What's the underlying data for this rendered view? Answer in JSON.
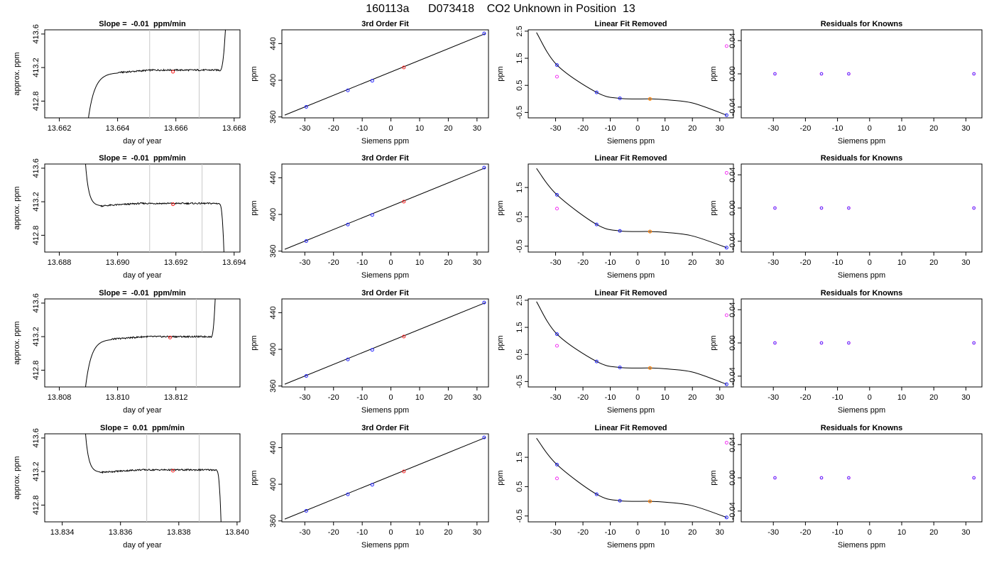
{
  "title": "160113a      D073418    CO2 Unknown in Position  13",
  "colors": {
    "curve": "#000000",
    "gray_line": "#c8c8c8",
    "known_point": "#2020ff",
    "unknown_point": "#ff2020",
    "unknown_fit_point": "#ff7f00",
    "residual_magenta": "#ee00ee",
    "residual_blue": "#4040ff"
  },
  "chart_data": [
    {
      "type": "line",
      "row": 0,
      "title": "Slope =  -0.01  ppm/min",
      "xlabel": "day of year",
      "ylabel": "approx. ppm",
      "xlim": [
        13.6615,
        13.6682
      ],
      "ylim": [
        412.6,
        413.65
      ],
      "xticks": [
        13.662,
        13.664,
        13.666,
        13.668
      ],
      "xtick_labels": [
        "13.662",
        "13.664",
        "13.666",
        "13.668"
      ],
      "yticks": [
        412.8,
        413.2,
        413.6
      ],
      "ytick_labels": [
        "412.8",
        "413.2",
        "413.6"
      ],
      "vlines": [
        13.6651,
        13.6668
      ],
      "baseline": 413.16,
      "point": [
        13.6659,
        413.15
      ],
      "rise_start": 13.663,
      "plateau_start": 13.664,
      "tail_start": 13.6675,
      "tail_end": 13.6677,
      "start_value": 412.6,
      "end_value": 413.65
    },
    {
      "type": "line",
      "row": 1,
      "title": "Slope =  -0.01  ppm/min",
      "xlabel": "day of year",
      "ylabel": "approx. ppm",
      "xlim": [
        13.6875,
        13.6942
      ],
      "ylim": [
        412.6,
        413.65
      ],
      "xticks": [
        13.688,
        13.69,
        13.692,
        13.694
      ],
      "xtick_labels": [
        "13.688",
        "13.690",
        "13.692",
        "13.694"
      ],
      "yticks": [
        412.8,
        413.2,
        413.6
      ],
      "ytick_labels": [
        "412.8",
        "413.2",
        "413.6"
      ],
      "vlines": [
        13.6911,
        13.6929
      ],
      "baseline": 413.17,
      "point": [
        13.6919,
        413.17
      ],
      "rise_start": 13.6889,
      "plateau_start": 13.6894,
      "tail_start": 13.6935,
      "tail_end": 13.69365,
      "start_value": 413.65,
      "end_value": 412.6
    },
    {
      "type": "line",
      "row": 2,
      "title": "Slope =  -0.01  ppm/min",
      "xlabel": "day of year",
      "ylabel": "approx. ppm",
      "xlim": [
        13.8075,
        13.8142
      ],
      "ylim": [
        412.6,
        413.65
      ],
      "xticks": [
        13.808,
        13.81,
        13.812
      ],
      "xtick_labels": [
        "13.808",
        "13.810",
        "13.812"
      ],
      "yticks": [
        412.8,
        413.2,
        413.6
      ],
      "ytick_labels": [
        "412.8",
        "413.2",
        "413.6"
      ],
      "vlines": [
        13.811,
        13.8127
      ],
      "baseline": 413.19,
      "point": [
        13.8118,
        413.19
      ],
      "rise_start": 13.8089,
      "plateau_start": 13.8098,
      "tail_start": 13.8132,
      "tail_end": 13.81335,
      "start_value": 412.6,
      "end_value": 413.65
    },
    {
      "type": "line",
      "row": 3,
      "title": "Slope =  0.01  ppm/min",
      "xlabel": "day of year",
      "ylabel": "approx. ppm",
      "xlim": [
        13.8334,
        13.8401
      ],
      "ylim": [
        412.6,
        413.65
      ],
      "xticks": [
        13.834,
        13.836,
        13.838,
        13.84
      ],
      "xtick_labels": [
        "13.834",
        "13.836",
        "13.838",
        "13.840"
      ],
      "yticks": [
        412.8,
        413.2,
        413.6
      ],
      "ytick_labels": [
        "412.8",
        "413.2",
        "413.6"
      ],
      "vlines": [
        13.8369,
        13.8387
      ],
      "baseline": 413.21,
      "point": [
        13.8378,
        413.21
      ],
      "rise_start": 13.8348,
      "plateau_start": 13.8353,
      "tail_start": 13.8393,
      "tail_end": 13.83945,
      "start_value": 413.65,
      "end_value": 412.6
    },
    {
      "type": "scatter",
      "row": 0,
      "title": "3rd Order Fit",
      "xlabel": "Siemens ppm",
      "ylabel": "ppm",
      "xlim": [
        -38,
        34
      ],
      "ylim": [
        359,
        455
      ],
      "xticks": [
        -30,
        -20,
        -10,
        0,
        10,
        20,
        30
      ],
      "xtick_labels": [
        "-30",
        "-20",
        "-10",
        "0",
        "10",
        "20",
        "30"
      ],
      "yticks": [
        360,
        400,
        440
      ],
      "ytick_labels": [
        "360",
        "400",
        "440"
      ],
      "line": [
        [
          -37,
          362
        ],
        [
          33,
          451
        ]
      ],
      "knowns": [
        [
          -29.5,
          371
        ],
        [
          -15,
          389
        ],
        [
          -6.5,
          399.5
        ],
        [
          32.5,
          451
        ]
      ],
      "unknown": [
        [
          4.5,
          414
        ]
      ]
    },
    {
      "type": "scatter",
      "row": 1,
      "title": "3rd Order Fit",
      "xlabel": "Siemens ppm",
      "ylabel": "ppm",
      "xlim": [
        -38,
        34
      ],
      "ylim": [
        359,
        455
      ],
      "xticks": [
        -30,
        -20,
        -10,
        0,
        10,
        20,
        30
      ],
      "xtick_labels": [
        "-30",
        "-20",
        "-10",
        "0",
        "10",
        "20",
        "30"
      ],
      "yticks": [
        360,
        400,
        440
      ],
      "ytick_labels": [
        "360",
        "400",
        "440"
      ],
      "line": [
        [
          -37,
          362
        ],
        [
          33,
          451
        ]
      ],
      "knowns": [
        [
          -29.5,
          371
        ],
        [
          -15,
          389
        ],
        [
          -6.5,
          399.5
        ],
        [
          32.5,
          451
        ]
      ],
      "unknown": [
        [
          4.5,
          414
        ]
      ]
    },
    {
      "type": "scatter",
      "row": 2,
      "title": "3rd Order Fit",
      "xlabel": "Siemens ppm",
      "ylabel": "ppm",
      "xlim": [
        -38,
        34
      ],
      "ylim": [
        359,
        455
      ],
      "xticks": [
        -30,
        -20,
        -10,
        0,
        10,
        20,
        30
      ],
      "xtick_labels": [
        "-30",
        "-20",
        "-10",
        "0",
        "10",
        "20",
        "30"
      ],
      "yticks": [
        360,
        400,
        440
      ],
      "ytick_labels": [
        "360",
        "400",
        "440"
      ],
      "line": [
        [
          -37,
          362
        ],
        [
          33,
          451
        ]
      ],
      "knowns": [
        [
          -29.5,
          371
        ],
        [
          -15,
          389
        ],
        [
          -6.5,
          399.5
        ],
        [
          32.5,
          451
        ]
      ],
      "unknown": [
        [
          4.5,
          414
        ]
      ]
    },
    {
      "type": "scatter",
      "row": 3,
      "title": "3rd Order Fit",
      "xlabel": "Siemens ppm",
      "ylabel": "ppm",
      "xlim": [
        -38,
        34
      ],
      "ylim": [
        359,
        455
      ],
      "xticks": [
        -30,
        -20,
        -10,
        0,
        10,
        20,
        30
      ],
      "xtick_labels": [
        "-30",
        "-20",
        "-10",
        "0",
        "10",
        "20",
        "30"
      ],
      "yticks": [
        360,
        400,
        440
      ],
      "ytick_labels": [
        "360",
        "400",
        "440"
      ],
      "line": [
        [
          -37,
          362
        ],
        [
          33,
          451
        ]
      ],
      "knowns": [
        [
          -29.5,
          371
        ],
        [
          -15,
          389
        ],
        [
          -6.5,
          399.5
        ],
        [
          32.5,
          451
        ]
      ],
      "unknown": [
        [
          4.5,
          414
        ]
      ]
    },
    {
      "type": "scatter",
      "row": 0,
      "title": "Linear Fit Removed",
      "xlabel": "Siemens ppm",
      "ylabel": "ppm",
      "xlim": [
        -40,
        35
      ],
      "ylim": [
        -0.7,
        2.55
      ],
      "xticks": [
        -30,
        -20,
        -10,
        0,
        10,
        20,
        30
      ],
      "xtick_labels": [
        "-30",
        "-20",
        "-10",
        "0",
        "10",
        "20",
        "30"
      ],
      "yticks": [
        -0.5,
        0.5,
        1.5,
        2.5
      ],
      "ytick_labels": [
        "-0.5",
        "0.5",
        "1.5",
        "2.5"
      ],
      "curve_points": [
        [
          -37,
          2.45
        ],
        [
          -29.5,
          1.25
        ],
        [
          -15,
          0.24
        ],
        [
          -6.5,
          0.02
        ],
        [
          4.5,
          0.0
        ],
        [
          10,
          -0.03
        ],
        [
          20,
          -0.15
        ],
        [
          32.5,
          -0.6
        ]
      ],
      "knowns": [
        [
          -29.5,
          1.25
        ],
        [
          -15,
          0.24
        ],
        [
          -6.5,
          0.02
        ],
        [
          32.5,
          -0.6
        ]
      ],
      "unknown": [
        [
          4.5,
          0.0
        ]
      ],
      "magenta": [
        [
          -29.5,
          0.82
        ],
        [
          32.5,
          1.95
        ]
      ]
    },
    {
      "type": "scatter",
      "row": 1,
      "title": "Linear Fit Removed",
      "xlabel": "Siemens ppm",
      "ylabel": "ppm",
      "xlim": [
        -40,
        35
      ],
      "ylim": [
        -0.7,
        2.3
      ],
      "xticks": [
        -30,
        -20,
        -10,
        0,
        10,
        20,
        30
      ],
      "xtick_labels": [
        "-30",
        "-20",
        "-10",
        "0",
        "10",
        "20",
        "30"
      ],
      "yticks": [
        -0.5,
        0.5,
        1.5
      ],
      "ytick_labels": [
        "-0.5",
        "0.5",
        "1.5"
      ],
      "curve_points": [
        [
          -37,
          2.15
        ],
        [
          -29.5,
          1.25
        ],
        [
          -15,
          0.24
        ],
        [
          -6.5,
          0.02
        ],
        [
          4.5,
          0.0
        ],
        [
          10,
          -0.03
        ],
        [
          20,
          -0.15
        ],
        [
          32.5,
          -0.55
        ]
      ],
      "knowns": [
        [
          -29.5,
          1.25
        ],
        [
          -15,
          0.24
        ],
        [
          -6.5,
          0.02
        ],
        [
          32.5,
          -0.55
        ]
      ],
      "unknown": [
        [
          4.5,
          0.0
        ]
      ],
      "magenta": [
        [
          -29.5,
          0.78
        ],
        [
          32.5,
          2.0
        ]
      ]
    },
    {
      "type": "scatter",
      "row": 2,
      "title": "Linear Fit Removed",
      "xlabel": "Siemens ppm",
      "ylabel": "ppm",
      "xlim": [
        -40,
        35
      ],
      "ylim": [
        -0.7,
        2.55
      ],
      "xticks": [
        -30,
        -20,
        -10,
        0,
        10,
        20,
        30
      ],
      "xtick_labels": [
        "-30",
        "-20",
        "-10",
        "0",
        "10",
        "20",
        "30"
      ],
      "yticks": [
        -0.5,
        0.5,
        1.5,
        2.5
      ],
      "ytick_labels": [
        "-0.5",
        "0.5",
        "1.5",
        "2.5"
      ],
      "curve_points": [
        [
          -37,
          2.45
        ],
        [
          -29.5,
          1.25
        ],
        [
          -15,
          0.24
        ],
        [
          -6.5,
          0.02
        ],
        [
          4.5,
          0.0
        ],
        [
          10,
          -0.03
        ],
        [
          20,
          -0.15
        ],
        [
          32.5,
          -0.6
        ]
      ],
      "knowns": [
        [
          -29.5,
          1.25
        ],
        [
          -15,
          0.24
        ],
        [
          -6.5,
          0.02
        ],
        [
          32.5,
          -0.6
        ]
      ],
      "unknown": [
        [
          4.5,
          0.0
        ]
      ],
      "magenta": [
        [
          -29.5,
          0.82
        ],
        [
          32.5,
          1.95
        ]
      ]
    },
    {
      "type": "scatter",
      "row": 3,
      "title": "Linear Fit Removed",
      "xlabel": "Siemens ppm",
      "ylabel": "ppm",
      "xlim": [
        -40,
        35
      ],
      "ylim": [
        -0.7,
        2.3
      ],
      "xticks": [
        -30,
        -20,
        -10,
        0,
        10,
        20,
        30
      ],
      "xtick_labels": [
        "-30",
        "-20",
        "-10",
        "0",
        "10",
        "20",
        "30"
      ],
      "yticks": [
        -0.5,
        0.5,
        1.5
      ],
      "ytick_labels": [
        "-0.5",
        "0.5",
        "1.5"
      ],
      "curve_points": [
        [
          -37,
          2.15
        ],
        [
          -29.5,
          1.25
        ],
        [
          -15,
          0.24
        ],
        [
          -6.5,
          0.02
        ],
        [
          4.5,
          0.0
        ],
        [
          10,
          -0.03
        ],
        [
          20,
          -0.15
        ],
        [
          32.5,
          -0.55
        ]
      ],
      "knowns": [
        [
          -29.5,
          1.25
        ],
        [
          -15,
          0.24
        ],
        [
          -6.5,
          0.02
        ],
        [
          32.5,
          -0.55
        ]
      ],
      "unknown": [
        [
          4.5,
          0.0
        ]
      ],
      "magenta": [
        [
          -29.5,
          0.78
        ],
        [
          32.5,
          2.0
        ]
      ]
    },
    {
      "type": "scatter",
      "row": 0,
      "title": "Residuals for Knowns",
      "xlabel": "Siemens ppm",
      "ylabel": "ppm",
      "xlim": [
        -40,
        35
      ],
      "ylim": [
        -0.053,
        0.053
      ],
      "xticks": [
        -30,
        -20,
        -10,
        0,
        10,
        20,
        30
      ],
      "xtick_labels": [
        "-30",
        "-20",
        "-10",
        "0",
        "10",
        "20",
        "30"
      ],
      "yticks": [
        -0.04,
        0.0,
        0.04
      ],
      "ytick_labels": [
        "-0.04",
        "0.00",
        "0.04"
      ],
      "knowns": [
        [
          -29.5,
          0
        ],
        [
          -15,
          0
        ],
        [
          -6.5,
          0
        ],
        [
          32.5,
          0
        ]
      ]
    },
    {
      "type": "scatter",
      "row": 1,
      "title": "Residuals for Knowns",
      "xlabel": "Siemens ppm",
      "ylabel": "ppm",
      "xlim": [
        -40,
        35
      ],
      "ylim": [
        -0.053,
        0.053
      ],
      "xticks": [
        -30,
        -20,
        -10,
        0,
        10,
        20,
        30
      ],
      "xtick_labels": [
        "-30",
        "-20",
        "-10",
        "0",
        "10",
        "20",
        "30"
      ],
      "yticks": [
        -0.04,
        0.0,
        0.04
      ],
      "ytick_labels": [
        "-0.04",
        "0.00",
        "0.04"
      ],
      "knowns": [
        [
          -29.5,
          0
        ],
        [
          -15,
          0
        ],
        [
          -6.5,
          0
        ],
        [
          32.5,
          0
        ]
      ]
    },
    {
      "type": "scatter",
      "row": 2,
      "title": "Residuals for Knowns",
      "xlabel": "Siemens ppm",
      "ylabel": "ppm",
      "xlim": [
        -40,
        35
      ],
      "ylim": [
        -0.053,
        0.053
      ],
      "xticks": [
        -30,
        -20,
        -10,
        0,
        10,
        20,
        30
      ],
      "xtick_labels": [
        "-30",
        "-20",
        "-10",
        "0",
        "10",
        "20",
        "30"
      ],
      "yticks": [
        -0.04,
        0.0,
        0.04
      ],
      "ytick_labels": [
        "-0.04",
        "0.00",
        "0.04"
      ],
      "knowns": [
        [
          -29.5,
          0
        ],
        [
          -15,
          0
        ],
        [
          -6.5,
          0
        ],
        [
          32.5,
          0
        ]
      ]
    },
    {
      "type": "scatter",
      "row": 3,
      "title": "Residuals for Knowns",
      "xlabel": "Siemens ppm",
      "ylabel": "ppm",
      "xlim": [
        -40,
        35
      ],
      "ylim": [
        -0.053,
        0.053
      ],
      "xticks": [
        -30,
        -20,
        -10,
        0,
        10,
        20,
        30
      ],
      "xtick_labels": [
        "-30",
        "-20",
        "-10",
        "0",
        "10",
        "20",
        "30"
      ],
      "yticks": [
        -0.04,
        0.0,
        0.04
      ],
      "ytick_labels": [
        "-0.04",
        "0.00",
        "0.04"
      ],
      "knowns": [
        [
          -29.5,
          0
        ],
        [
          -15,
          0
        ],
        [
          -6.5,
          0
        ],
        [
          32.5,
          0
        ]
      ]
    }
  ]
}
